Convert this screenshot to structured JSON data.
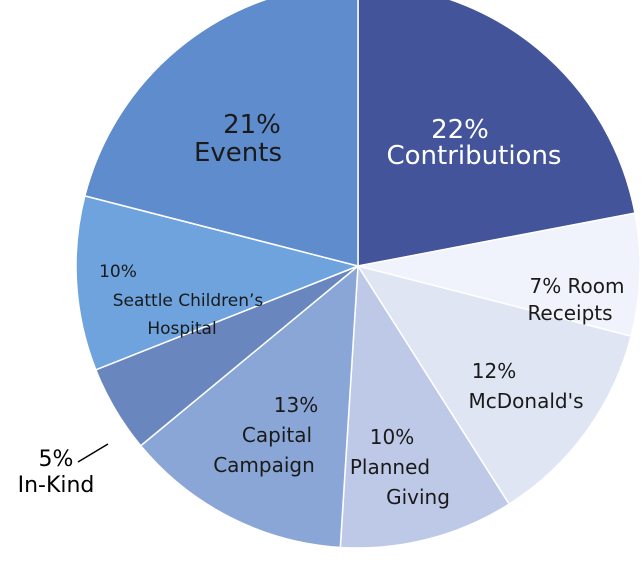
{
  "chart_data": {
    "type": "pie",
    "slices": [
      {
        "label": "Contributions",
        "value": 22,
        "pct_label": "22%",
        "color": "#43549b",
        "text_color": "#ffffff"
      },
      {
        "label": "Room Receipts",
        "value": 7,
        "pct_label": "7% Room",
        "label_line2": "Receipts",
        "color": "#f0f3fb",
        "text_color": "#1a1a1a"
      },
      {
        "label": "McDonald's",
        "value": 12,
        "pct_label": "12%",
        "color": "#dfe5f3",
        "text_color": "#1a1a1a"
      },
      {
        "label": "Planned Giving",
        "value": 10,
        "pct_label": "10%",
        "label_line1": "Planned",
        "label_line2": "Giving",
        "color": "#bdc9e6",
        "text_color": "#1a1a1a"
      },
      {
        "label": "Capital Campaign",
        "value": 13,
        "pct_label": "13%",
        "label_line1": "Capital",
        "label_line2": "Campaign",
        "color": "#8aa6d6",
        "text_color": "#1a1a1a"
      },
      {
        "label": "In-Kind",
        "value": 5,
        "pct_label": "5%",
        "color": "#6a86bf",
        "text_color": "#000000"
      },
      {
        "label": "Seattle Children's Hospital",
        "value": 10,
        "pct_label": "10%",
        "label_line1": "Seattle Children’s",
        "label_line2": "Hospital",
        "color": "#6ea3de",
        "text_color": "#1a1a1a"
      },
      {
        "label": "Events",
        "value": 21,
        "pct_label": "21%",
        "color": "#5f8ccc",
        "text_color": "#1a1a1a"
      }
    ]
  }
}
